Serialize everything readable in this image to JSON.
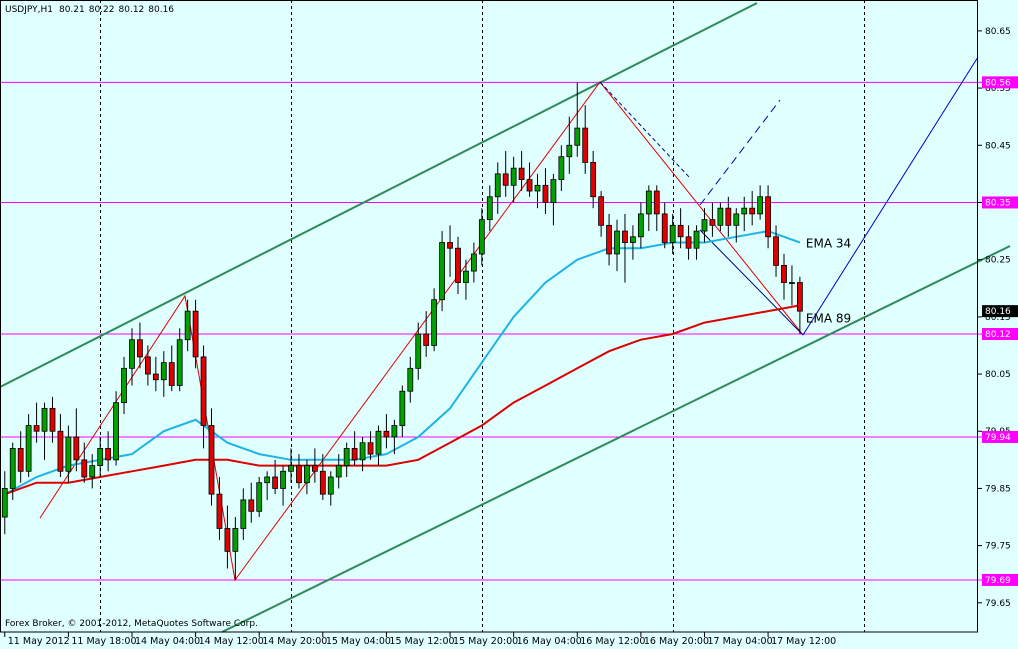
{
  "symbol": "USDJPY,H1",
  "quote": [
    80.21,
    80.22,
    80.12,
    80.16
  ],
  "footer": "Forex Broker, © 2001-2012, MetaQuotes Software Corp.",
  "chart_data": {
    "type": "candlestick",
    "up_color": "#00a000",
    "down_color": "#e00000",
    "ylim": [
      79.599,
      80.704
    ],
    "yticks": [
      80.65,
      80.55,
      80.45,
      80.35,
      80.25,
      80.15,
      80.05,
      79.95,
      79.85,
      79.75,
      79.65
    ],
    "xlim": [
      -0.6,
      122.4
    ],
    "xticks": [
      {
        "value": 0,
        "label": "11 May 2012"
      },
      {
        "value": 8,
        "label": "11 May 18:00"
      },
      {
        "value": 16,
        "label": "14 May 04:00"
      },
      {
        "value": 24,
        "label": "14 May 12:00"
      },
      {
        "value": 32,
        "label": "14 May 20:00"
      },
      {
        "value": 40,
        "label": "15 May 04:00"
      },
      {
        "value": 48,
        "label": "15 May 12:00"
      },
      {
        "value": 56,
        "label": "15 May 20:00"
      },
      {
        "value": 64,
        "label": "16 May 04:00"
      },
      {
        "value": 72,
        "label": "16 May 12:00"
      },
      {
        "value": 80,
        "label": "16 May 20:00"
      },
      {
        "value": 88,
        "label": "17 May 04:00"
      },
      {
        "value": 96,
        "label": "17 May 12:00"
      }
    ],
    "ohlc": [
      [
        79.8,
        79.88,
        79.77,
        79.85
      ],
      [
        79.85,
        79.93,
        79.83,
        79.92
      ],
      [
        79.92,
        79.95,
        79.86,
        79.88
      ],
      [
        79.88,
        79.98,
        79.87,
        79.96
      ],
      [
        79.96,
        80.0,
        79.93,
        79.95
      ],
      [
        79.95,
        80.0,
        79.9,
        79.99
      ],
      [
        79.99,
        80.01,
        79.93,
        79.95
      ],
      [
        79.95,
        79.98,
        79.87,
        79.88
      ],
      [
        79.88,
        79.96,
        79.86,
        79.94
      ],
      [
        79.94,
        79.99,
        79.88,
        79.9
      ],
      [
        79.9,
        79.93,
        79.86,
        79.87
      ],
      [
        79.87,
        79.91,
        79.85,
        79.89
      ],
      [
        79.89,
        79.94,
        79.87,
        79.92
      ],
      [
        79.92,
        79.95,
        79.88,
        79.9
      ],
      [
        79.9,
        80.02,
        79.89,
        80.0
      ],
      [
        80.0,
        80.08,
        79.98,
        80.06
      ],
      [
        80.06,
        80.13,
        80.03,
        80.11
      ],
      [
        80.11,
        80.14,
        80.06,
        80.08
      ],
      [
        80.08,
        80.1,
        80.03,
        80.05
      ],
      [
        80.05,
        80.08,
        80.02,
        80.04
      ],
      [
        80.04,
        80.09,
        80.01,
        80.07
      ],
      [
        80.07,
        80.1,
        80.02,
        80.03
      ],
      [
        80.03,
        80.13,
        80.02,
        80.11
      ],
      [
        80.11,
        80.18,
        80.09,
        80.16
      ],
      [
        80.16,
        80.18,
        80.06,
        80.08
      ],
      [
        80.08,
        80.1,
        79.92,
        79.96
      ],
      [
        79.96,
        79.99,
        79.82,
        79.84
      ],
      [
        79.84,
        79.87,
        79.76,
        79.78
      ],
      [
        79.78,
        79.82,
        79.71,
        79.74
      ],
      [
        79.74,
        79.8,
        79.69,
        79.78
      ],
      [
        79.78,
        79.85,
        79.76,
        79.83
      ],
      [
        79.83,
        79.86,
        79.79,
        79.81
      ],
      [
        79.81,
        79.87,
        79.8,
        79.86
      ],
      [
        79.86,
        79.88,
        79.83,
        79.87
      ],
      [
        79.87,
        79.9,
        79.84,
        79.85
      ],
      [
        79.85,
        79.89,
        79.82,
        79.88
      ],
      [
        79.88,
        79.92,
        79.86,
        79.89
      ],
      [
        79.89,
        79.91,
        79.85,
        79.86
      ],
      [
        79.86,
        79.9,
        79.84,
        79.89
      ],
      [
        79.89,
        79.92,
        79.86,
        79.88
      ],
      [
        79.88,
        79.91,
        79.83,
        79.84
      ],
      [
        79.84,
        79.88,
        79.82,
        79.87
      ],
      [
        79.87,
        79.91,
        79.85,
        79.89
      ],
      [
        79.89,
        79.93,
        79.87,
        79.92
      ],
      [
        79.92,
        79.95,
        79.89,
        79.9
      ],
      [
        79.9,
        79.94,
        79.88,
        79.93
      ],
      [
        79.93,
        79.95,
        79.9,
        79.91
      ],
      [
        79.91,
        79.96,
        79.89,
        79.95
      ],
      [
        79.95,
        79.98,
        79.92,
        79.94
      ],
      [
        79.94,
        79.97,
        79.91,
        79.96
      ],
      [
        79.96,
        80.03,
        79.94,
        80.02
      ],
      [
        80.02,
        80.08,
        80.0,
        80.06
      ],
      [
        80.06,
        80.14,
        80.04,
        80.12
      ],
      [
        80.12,
        80.16,
        80.08,
        80.1
      ],
      [
        80.1,
        80.2,
        80.09,
        80.18
      ],
      [
        80.18,
        80.3,
        80.16,
        80.28
      ],
      [
        80.28,
        80.31,
        80.22,
        80.27
      ],
      [
        80.27,
        80.29,
        80.19,
        80.21
      ],
      [
        80.21,
        80.25,
        80.18,
        80.23
      ],
      [
        80.23,
        80.28,
        80.21,
        80.26
      ],
      [
        80.26,
        80.34,
        80.24,
        80.32
      ],
      [
        80.32,
        80.38,
        80.3,
        80.36
      ],
      [
        80.36,
        80.42,
        80.33,
        80.4
      ],
      [
        80.4,
        80.44,
        80.36,
        80.38
      ],
      [
        80.38,
        80.43,
        80.35,
        80.41
      ],
      [
        80.41,
        80.44,
        80.37,
        80.39
      ],
      [
        80.39,
        80.42,
        80.36,
        80.37
      ],
      [
        80.37,
        80.4,
        80.34,
        80.38
      ],
      [
        80.38,
        80.41,
        80.33,
        80.35
      ],
      [
        80.35,
        80.4,
        80.31,
        80.39
      ],
      [
        80.39,
        80.45,
        80.37,
        80.43
      ],
      [
        80.43,
        80.5,
        80.4,
        80.45
      ],
      [
        80.45,
        80.56,
        80.43,
        80.48
      ],
      [
        80.48,
        80.52,
        80.4,
        80.42
      ],
      [
        80.42,
        80.44,
        80.34,
        80.36
      ],
      [
        80.36,
        80.37,
        80.29,
        80.31
      ],
      [
        80.31,
        80.33,
        80.24,
        80.26
      ],
      [
        80.26,
        80.32,
        80.23,
        80.3
      ],
      [
        80.3,
        80.33,
        80.21,
        80.28
      ],
      [
        80.28,
        80.31,
        80.25,
        80.29
      ],
      [
        80.29,
        80.35,
        80.27,
        80.33
      ],
      [
        80.33,
        80.38,
        80.3,
        80.37
      ],
      [
        80.37,
        80.38,
        80.3,
        80.33
      ],
      [
        80.33,
        80.35,
        80.27,
        80.28
      ],
      [
        80.28,
        80.33,
        80.26,
        80.31
      ],
      [
        80.31,
        80.34,
        80.27,
        80.29
      ],
      [
        80.29,
        80.31,
        80.25,
        80.27
      ],
      [
        80.27,
        80.31,
        80.25,
        80.3
      ],
      [
        80.3,
        80.34,
        80.28,
        80.32
      ],
      [
        80.32,
        80.35,
        80.29,
        80.31
      ],
      [
        80.31,
        80.35,
        80.3,
        80.34
      ],
      [
        80.34,
        80.36,
        80.29,
        80.31
      ],
      [
        80.31,
        80.34,
        80.28,
        80.33
      ],
      [
        80.33,
        80.36,
        80.3,
        80.34
      ],
      [
        80.34,
        80.37,
        80.31,
        80.33
      ],
      [
        80.33,
        80.38,
        80.32,
        80.36
      ],
      [
        80.36,
        80.38,
        80.27,
        80.29
      ],
      [
        80.29,
        80.31,
        80.22,
        80.24
      ],
      [
        80.24,
        80.26,
        80.18,
        80.21
      ],
      [
        80.21,
        80.24,
        80.17,
        80.21
      ],
      [
        80.21,
        80.22,
        80.12,
        80.16
      ]
    ],
    "lines": [
      {
        "name": "EMA 34",
        "color": "#1eb4e6",
        "x": [
          0,
          4,
          8,
          12,
          16,
          20,
          24,
          28,
          32,
          36,
          40,
          44,
          48,
          52,
          56,
          60,
          64,
          68,
          72,
          76,
          80,
          84,
          88,
          92,
          96,
          100
        ],
        "values": [
          79.84,
          79.87,
          79.89,
          79.9,
          79.91,
          79.95,
          79.97,
          79.93,
          79.91,
          79.9,
          79.9,
          79.9,
          79.91,
          79.94,
          79.99,
          80.07,
          80.15,
          80.21,
          80.25,
          80.27,
          80.27,
          80.28,
          80.28,
          80.29,
          80.3,
          80.28
        ]
      },
      {
        "name": "EMA 89",
        "color": "#dc0000",
        "x": [
          0,
          4,
          8,
          12,
          16,
          20,
          24,
          28,
          32,
          36,
          40,
          44,
          48,
          52,
          56,
          60,
          64,
          68,
          72,
          76,
          80,
          84,
          88,
          92,
          96,
          100
        ],
        "values": [
          79.84,
          79.86,
          79.86,
          79.87,
          79.88,
          79.89,
          79.9,
          79.9,
          79.89,
          79.89,
          79.89,
          79.89,
          79.89,
          79.9,
          79.93,
          79.96,
          80.0,
          80.03,
          80.06,
          80.09,
          80.11,
          80.12,
          80.14,
          80.15,
          80.16,
          80.17
        ]
      }
    ],
    "levels": [
      {
        "value": 80.56,
        "color": "#ff00ff"
      },
      {
        "value": 80.35,
        "color": "#ff00ff"
      },
      {
        "value": 80.12,
        "color": "#ff00ff"
      },
      {
        "value": 79.94,
        "color": "#ff00ff"
      },
      {
        "value": 79.69,
        "color": "#ff00ff"
      }
    ],
    "last_price": 80.16
  }
}
